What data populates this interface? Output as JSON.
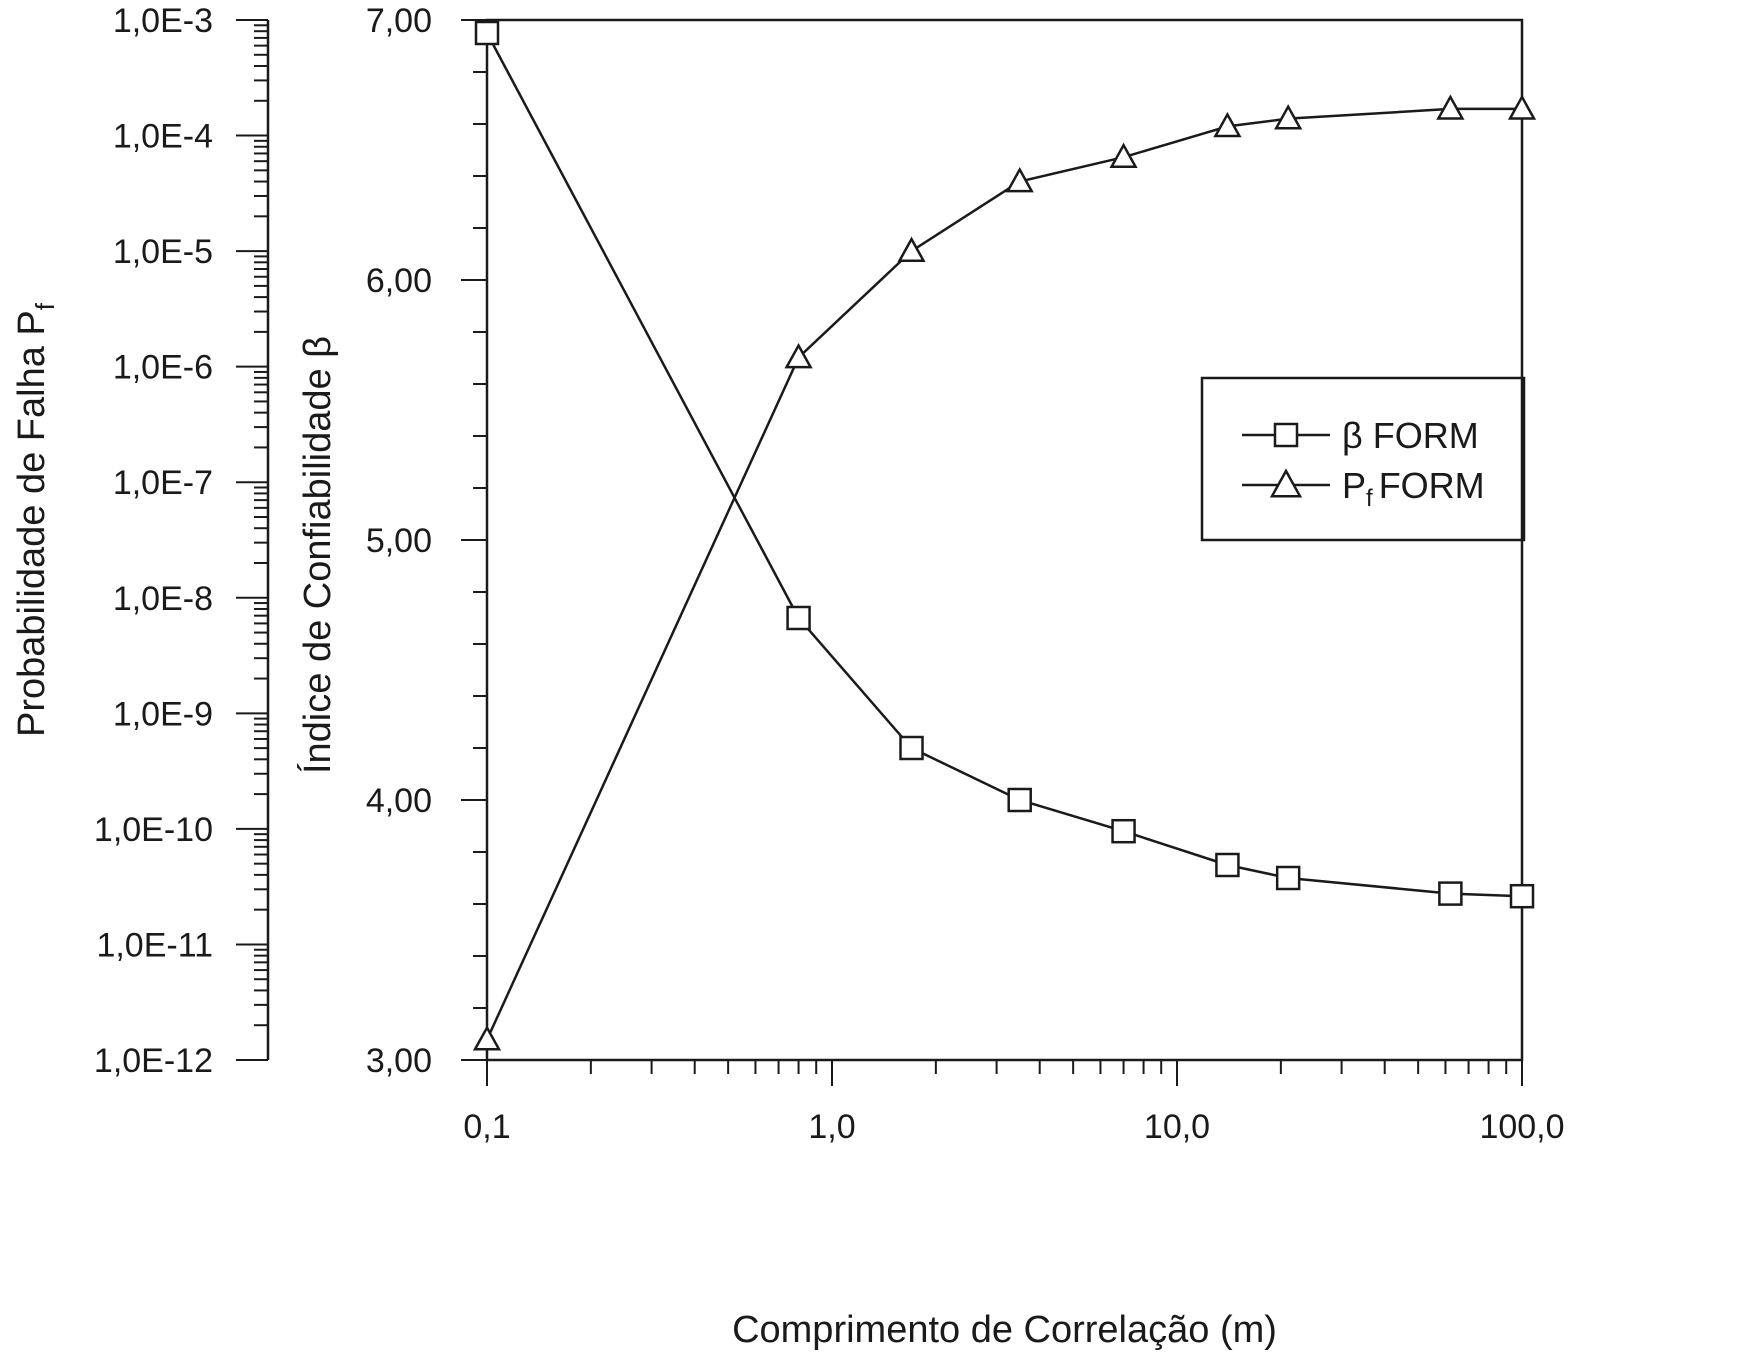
{
  "chart_data": {
    "type": "line",
    "xlabel": "Comprimento de Correlação (m)",
    "ylabel_left": "Probabilidade de Falha P",
    "ylabel_left_sub": "f",
    "ylabel_right": "Índice de Confiabilidade β",
    "x_scale": "log",
    "xlim": [
      0.1,
      100
    ],
    "x_ticks": [
      {
        "value": 0.1,
        "label": "0,1"
      },
      {
        "value": 1,
        "label": "1,0"
      },
      {
        "value": 10,
        "label": "10,0"
      },
      {
        "value": 100,
        "label": "100,0"
      }
    ],
    "beta_axis": {
      "ylim": [
        3,
        7
      ],
      "ticks": [
        {
          "value": 3,
          "label": "3,00"
        },
        {
          "value": 4,
          "label": "4,00"
        },
        {
          "value": 5,
          "label": "5,00"
        },
        {
          "value": 6,
          "label": "6,00"
        },
        {
          "value": 7,
          "label": "7,00"
        }
      ]
    },
    "pf_axis": {
      "scale": "log",
      "ylim": [
        1e-12,
        0.001
      ],
      "ticks": [
        {
          "value": 1e-12,
          "label": "1,0E-12"
        },
        {
          "value": 1e-11,
          "label": "1,0E-11"
        },
        {
          "value": 1e-10,
          "label": "1,0E-10"
        },
        {
          "value": 1e-09,
          "label": "1,0E-9"
        },
        {
          "value": 1e-08,
          "label": "1,0E-8"
        },
        {
          "value": 1e-07,
          "label": "1,0E-7"
        },
        {
          "value": 1e-06,
          "label": "1,0E-6"
        },
        {
          "value": 1e-05,
          "label": "1,0E-5"
        },
        {
          "value": 0.0001,
          "label": "1,0E-4"
        },
        {
          "value": 0.001,
          "label": "1,0E-3"
        }
      ]
    },
    "legend_position": "right",
    "series": [
      {
        "name": "β FORM",
        "marker": "square",
        "axis": "beta",
        "x": [
          0.1,
          0.8,
          1.7,
          3.5,
          7.0,
          14.0,
          21.0,
          62.0,
          100.0
        ],
        "y": [
          6.95,
          4.7,
          4.2,
          4.0,
          3.88,
          3.75,
          3.7,
          3.64,
          3.63
        ]
      },
      {
        "name": "FORM",
        "name_prefix": "P",
        "name_sub": "f",
        "marker": "triangle",
        "axis": "pf",
        "x": [
          0.1,
          0.8,
          1.7,
          3.5,
          7.0,
          14.0,
          21.0,
          62.0,
          100.0
        ],
        "y": [
          1.5e-12,
          1.2e-06,
          1e-05,
          4e-05,
          6.5e-05,
          0.00012,
          0.00014,
          0.00017,
          0.00017
        ]
      }
    ]
  }
}
